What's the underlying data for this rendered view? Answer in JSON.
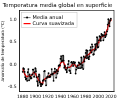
{
  "chart_data": {
    "type": "line",
    "title": "Temperatura media global en superficie",
    "y_label": "Anomalía de temperatura (°C)",
    "x": [
      1880,
      1881,
      1882,
      1883,
      1884,
      1885,
      1886,
      1887,
      1888,
      1889,
      1890,
      1891,
      1892,
      1893,
      1894,
      1895,
      1896,
      1897,
      1898,
      1899,
      1900,
      1901,
      1902,
      1903,
      1904,
      1905,
      1906,
      1907,
      1908,
      1909,
      1910,
      1911,
      1912,
      1913,
      1914,
      1915,
      1916,
      1917,
      1918,
      1919,
      1920,
      1921,
      1922,
      1923,
      1924,
      1925,
      1926,
      1927,
      1928,
      1929,
      1930,
      1931,
      1932,
      1933,
      1934,
      1935,
      1936,
      1937,
      1938,
      1939,
      1940,
      1941,
      1942,
      1943,
      1944,
      1945,
      1946,
      1947,
      1948,
      1949,
      1950,
      1951,
      1952,
      1953,
      1954,
      1955,
      1956,
      1957,
      1958,
      1959,
      1960,
      1961,
      1962,
      1963,
      1964,
      1965,
      1966,
      1967,
      1968,
      1969,
      1970,
      1971,
      1972,
      1973,
      1974,
      1975,
      1976,
      1977,
      1978,
      1979,
      1980,
      1981,
      1982,
      1983,
      1984,
      1985,
      1986,
      1987,
      1988,
      1989,
      1990,
      1991,
      1992,
      1993,
      1994,
      1995,
      1996,
      1997,
      1998,
      1999,
      2000,
      2001,
      2002,
      2003,
      2004,
      2005,
      2006,
      2007,
      2008,
      2009,
      2010,
      2011,
      2012,
      2013,
      2014,
      2015,
      2016,
      2017,
      2018,
      2019,
      2020
    ],
    "series": [
      {
        "name": "Media anual",
        "color": "#000000",
        "marker": "circle",
        "line_style": "solid",
        "values": [
          -0.16,
          -0.08,
          -0.1,
          -0.16,
          -0.28,
          -0.33,
          -0.31,
          -0.36,
          -0.17,
          -0.1,
          -0.35,
          -0.22,
          -0.27,
          -0.31,
          -0.3,
          -0.22,
          -0.11,
          -0.11,
          -0.27,
          -0.17,
          -0.08,
          -0.15,
          -0.28,
          -0.37,
          -0.47,
          -0.26,
          -0.22,
          -0.39,
          -0.43,
          -0.48,
          -0.43,
          -0.44,
          -0.36,
          -0.34,
          -0.15,
          -0.14,
          -0.36,
          -0.46,
          -0.3,
          -0.27,
          -0.27,
          -0.19,
          -0.28,
          -0.26,
          -0.27,
          -0.22,
          -0.1,
          -0.22,
          -0.2,
          -0.36,
          -0.16,
          -0.09,
          -0.16,
          -0.29,
          -0.12,
          -0.2,
          -0.15,
          -0.03,
          -0.01,
          -0.02,
          0.13,
          0.19,
          0.07,
          0.09,
          0.2,
          0.09,
          -0.07,
          -0.03,
          -0.11,
          -0.11,
          -0.17,
          -0.07,
          0.01,
          0.08,
          -0.13,
          -0.14,
          -0.19,
          0.05,
          0.06,
          0.03,
          -0.03,
          0.06,
          0.03,
          0.05,
          -0.2,
          -0.11,
          -0.06,
          -0.02,
          -0.08,
          0.05,
          0.03,
          -0.08,
          0.01,
          0.16,
          -0.07,
          -0.01,
          -0.1,
          0.18,
          0.07,
          0.16,
          0.26,
          0.32,
          0.14,
          0.31,
          0.16,
          0.12,
          0.18,
          0.32,
          0.39,
          0.27,
          0.45,
          0.4,
          0.22,
          0.23,
          0.31,
          0.45,
          0.33,
          0.46,
          0.61,
          0.38,
          0.39,
          0.54,
          0.63,
          0.62,
          0.53,
          0.68,
          0.64,
          0.66,
          0.54,
          0.65,
          0.72,
          0.61,
          0.64,
          0.67,
          0.74,
          0.89,
          1.01,
          0.92,
          0.85,
          0.98,
          1.02
        ]
      },
      {
        "name": "Curva suavizada",
        "color": "#ff0000",
        "marker": "none",
        "line_style": "solid",
        "values": [
          -0.09,
          -0.13,
          -0.17,
          -0.2,
          -0.23,
          -0.25,
          -0.27,
          -0.27,
          -0.26,
          -0.25,
          -0.25,
          -0.25,
          -0.26,
          -0.26,
          -0.24,
          -0.22,
          -0.2,
          -0.18,
          -0.17,
          -0.17,
          -0.2,
          -0.23,
          -0.26,
          -0.28,
          -0.31,
          -0.34,
          -0.36,
          -0.37,
          -0.4,
          -0.42,
          -0.43,
          -0.41,
          -0.38,
          -0.35,
          -0.33,
          -0.32,
          -0.31,
          -0.3,
          -0.3,
          -0.29,
          -0.27,
          -0.26,
          -0.25,
          -0.24,
          -0.23,
          -0.22,
          -0.22,
          -0.21,
          -0.2,
          -0.19,
          -0.19,
          -0.18,
          -0.17,
          -0.16,
          -0.14,
          -0.13,
          -0.11,
          -0.08,
          -0.05,
          -0.01,
          0.02,
          0.05,
          0.07,
          0.08,
          0.07,
          0.05,
          0.01,
          -0.03,
          -0.06,
          -0.08,
          -0.08,
          -0.07,
          -0.06,
          -0.06,
          -0.06,
          -0.06,
          -0.05,
          -0.03,
          -0.01,
          0.01,
          0.02,
          0.02,
          0.01,
          -0.01,
          -0.03,
          -0.04,
          -0.04,
          -0.03,
          -0.02,
          -0.01,
          0.0,
          0.01,
          0.02,
          0.03,
          0.03,
          0.04,
          0.06,
          0.09,
          0.12,
          0.15,
          0.18,
          0.2,
          0.21,
          0.21,
          0.22,
          0.23,
          0.24,
          0.26,
          0.29,
          0.31,
          0.33,
          0.33,
          0.33,
          0.33,
          0.34,
          0.36,
          0.39,
          0.41,
          0.43,
          0.46,
          0.49,
          0.52,
          0.55,
          0.58,
          0.6,
          0.61,
          0.62,
          0.62,
          0.63,
          0.64,
          0.65,
          0.67,
          0.7,
          0.74,
          0.78,
          0.83,
          0.87,
          0.91,
          0.95,
          0.98,
          1.01
        ]
      }
    ],
    "xlim": [
      1875,
      2025
    ],
    "xticks": [
      1880,
      1900,
      1920,
      1940,
      1960,
      1980,
      2000,
      2020
    ],
    "ylim": [
      -0.6,
      1.2
    ],
    "yticks": [
      {
        "value": -0.5,
        "label": "-0.5"
      },
      {
        "value": 0,
        "label": "0.0"
      },
      {
        "value": 0.5,
        "label": "0.5"
      },
      {
        "value": 1,
        "label": "1.0"
      }
    ],
    "grid": false,
    "legend": "upper left"
  }
}
